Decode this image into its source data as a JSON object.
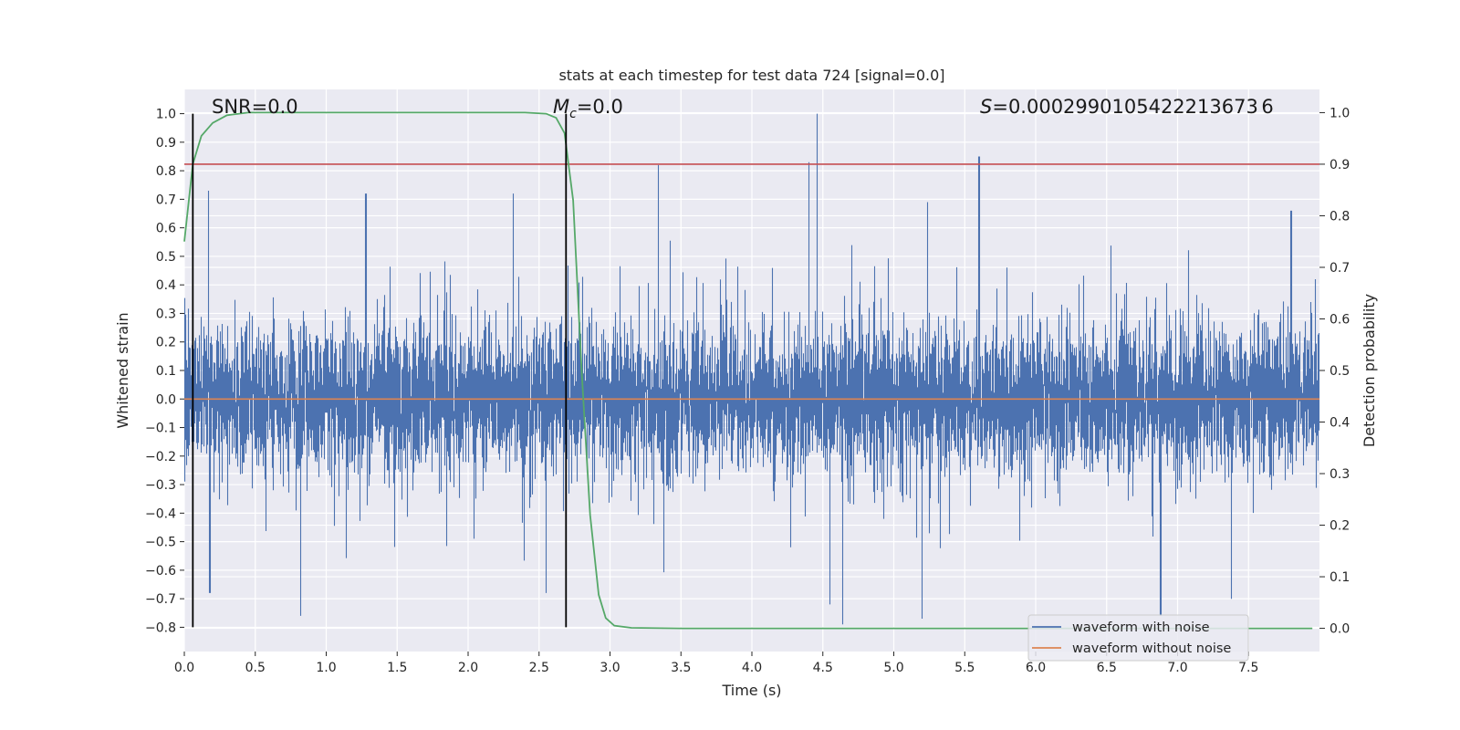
{
  "chart_data": {
    "type": "line",
    "title": "stats at each timestep for test data 724 [signal=0.0]",
    "xlabel": "Time (s)",
    "ylabel": "Whitened strain",
    "y2label": "Detection probability",
    "xlim": [
      0.0,
      8.0
    ],
    "ylim": [
      -0.885,
      1.085
    ],
    "y2lim": [
      -0.045,
      1.045
    ],
    "x_ticks": [
      "0.0",
      "0.5",
      "1.0",
      "1.5",
      "2.0",
      "2.5",
      "3.0",
      "3.5",
      "4.0",
      "4.5",
      "5.0",
      "5.5",
      "6.0",
      "6.5",
      "7.0",
      "7.5"
    ],
    "y_ticks": [
      "1.0",
      "0.9",
      "0.8",
      "0.7",
      "0.6",
      "0.5",
      "0.4",
      "0.3",
      "0.2",
      "0.1",
      "0.0",
      "−0.1",
      "−0.2",
      "−0.3",
      "−0.4",
      "−0.5",
      "−0.6",
      "−0.7",
      "−0.8"
    ],
    "y2_ticks": [
      "1.0",
      "0.9",
      "0.8",
      "0.7",
      "0.6",
      "0.5",
      "0.4",
      "0.3",
      "0.2",
      "0.1",
      "0.0"
    ],
    "grid": true,
    "legend_position": "lower-right",
    "colors": {
      "plot_bg": "#EAEAF2",
      "grid": "#FFFFFF",
      "noise": "#4C72B0",
      "clean": "#DD8452",
      "probability": "#55A868",
      "threshold": "#C44E52",
      "marker": "#000000"
    },
    "series": [
      {
        "name": "waveform with noise",
        "description_of_values": "dense noise trace, sampled envelope extremes",
        "x_start": 0.0,
        "x_end": 7.999,
        "typical_amplitude": 0.28,
        "peaks": [
          [
            0.17,
            0.73
          ],
          [
            1.28,
            0.72
          ],
          [
            2.32,
            0.72
          ],
          [
            3.34,
            0.82
          ],
          [
            4.4,
            0.83
          ],
          [
            4.46,
            1.0
          ],
          [
            5.6,
            0.85
          ],
          [
            7.8,
            0.66
          ]
        ],
        "troughs": [
          [
            0.18,
            -0.68
          ],
          [
            0.82,
            -0.76
          ],
          [
            2.55,
            -0.68
          ],
          [
            4.55,
            -0.72
          ],
          [
            4.64,
            -0.79
          ],
          [
            5.2,
            -0.77
          ],
          [
            6.88,
            -0.76
          ],
          [
            7.38,
            -0.7
          ]
        ]
      },
      {
        "name": "waveform without noise",
        "x": [
          0.0,
          8.0
        ],
        "y": [
          0.0,
          0.0
        ]
      },
      {
        "name": "Detection probability",
        "axis": "right",
        "x": [
          0.0,
          0.06,
          0.12,
          0.2,
          0.3,
          0.45,
          0.8,
          1.5,
          2.0,
          2.4,
          2.55,
          2.62,
          2.68,
          2.74,
          2.8,
          2.86,
          2.92,
          2.97,
          3.03,
          3.15,
          3.5,
          4.5,
          5.5,
          6.5,
          7.5,
          7.95
        ],
        "y": [
          0.75,
          0.9,
          0.955,
          0.98,
          0.995,
          1.0,
          1.0,
          1.0,
          1.0,
          1.0,
          0.998,
          0.99,
          0.96,
          0.83,
          0.5,
          0.22,
          0.065,
          0.02,
          0.005,
          0.001,
          0.0,
          0.0,
          0.0,
          0.0,
          0.0,
          0.0
        ]
      }
    ],
    "threshold": {
      "value": 0.9,
      "axis": "right"
    },
    "markers_x": [
      0.06,
      2.69
    ],
    "annotations": {
      "snr_label": "SNR=0.0",
      "mc_symbol": "M",
      "mc_subscript": "c",
      "mc_value": "=0.0",
      "s_symbol": "S",
      "s_value": "=0.0002990105422213673 ​6"
    },
    "legend": [
      "waveform with noise",
      "waveform without noise"
    ]
  }
}
